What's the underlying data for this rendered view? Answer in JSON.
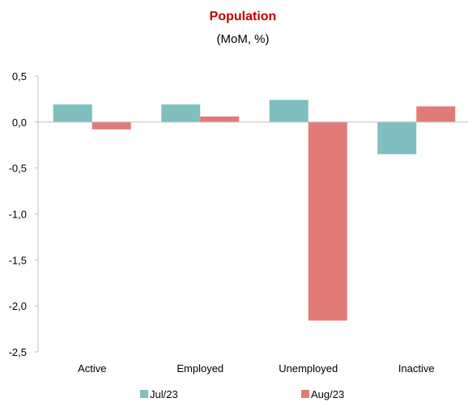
{
  "chart_data": {
    "type": "bar",
    "title": "Population",
    "subtitle": "(MoM, %)",
    "categories": [
      "Active",
      "Employed",
      "Unemployed",
      "Inactive"
    ],
    "series": [
      {
        "name": "Jul/23",
        "values": [
          0.19,
          0.19,
          0.24,
          -0.35
        ],
        "color": "#7fbfbf"
      },
      {
        "name": "Aug/23",
        "values": [
          -0.08,
          0.06,
          -2.16,
          0.17
        ],
        "color": "#e07b78"
      }
    ],
    "ylim": [
      -2.5,
      0.5
    ],
    "yticks": [
      "0,5",
      "0,0",
      "-0,5",
      "-1,0",
      "-1,5",
      "-2,0",
      "-2,5"
    ],
    "ytick_values": [
      0.5,
      0.0,
      -0.5,
      -1.0,
      -1.5,
      -2.0,
      -2.5
    ],
    "grid": false,
    "legend_position": "bottom"
  }
}
